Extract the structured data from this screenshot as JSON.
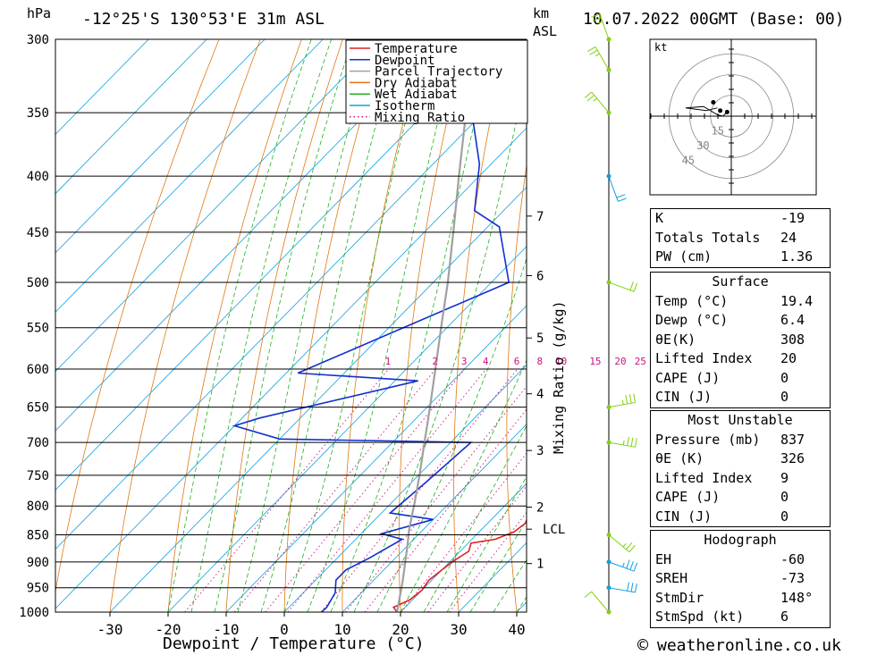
{
  "header": {
    "pressure_unit": "hPa",
    "location": "-12°25'S  130°53'E  31m  ASL",
    "height_unit_line1": "km",
    "height_unit_line2": "ASL",
    "datetime": "10.07.2022  00GMT  (Base: 00)"
  },
  "chart_data": {
    "type": "line",
    "subtype": "skew-T log-P",
    "xlabel": "Dewpoint / Temperature (°C)",
    "ylabel": "hPa",
    "right_axis_label": "km ASL",
    "mixing_ratio_axis_label": "Mixing Ratio (g/kg)",
    "x_ticks": [
      -30,
      -20,
      -10,
      0,
      10,
      20,
      30,
      40
    ],
    "pressure_levels": [
      300,
      350,
      400,
      450,
      500,
      550,
      600,
      650,
      700,
      750,
      800,
      850,
      900,
      950,
      1000
    ],
    "pressure_range": [
      1000,
      300
    ],
    "height_ticks": [
      {
        "label": "7",
        "p": 435
      },
      {
        "label": "6",
        "p": 493
      },
      {
        "label": "5",
        "p": 562
      },
      {
        "label": "4",
        "p": 632
      },
      {
        "label": "3",
        "p": 712
      },
      {
        "label": "2",
        "p": 802
      },
      {
        "label": "1",
        "p": 903
      }
    ],
    "lcl": {
      "label": "LCL",
      "p": 840
    },
    "mixing_ratio_labels": [
      "1",
      "2",
      "3",
      "4",
      "6",
      "8",
      "10",
      "15",
      "20",
      "25"
    ],
    "mixing_ratio_values": [
      1,
      2,
      3,
      4,
      6,
      8,
      10,
      15,
      20,
      25
    ],
    "legend": {
      "position": "top-right",
      "entries": [
        {
          "label": "Temperature",
          "color": "#e02020",
          "style": "solid"
        },
        {
          "label": "Dewpoint",
          "color": "#1030d0",
          "style": "solid"
        },
        {
          "label": "Parcel Trajectory",
          "color": "#a0a0a0",
          "style": "solid"
        },
        {
          "label": "Dry Adiabat",
          "color": "#e07810",
          "style": "solid"
        },
        {
          "label": "Wet Adiabat",
          "color": "#20b020",
          "style": "solid"
        },
        {
          "label": "Isotherm",
          "color": "#10a0e0",
          "style": "solid"
        },
        {
          "label": "Mixing Ratio",
          "color": "#d01080",
          "style": "dotted"
        }
      ]
    },
    "series": [
      {
        "name": "Temperature",
        "color": "#e02020",
        "points": [
          [
            19.4,
            1000
          ],
          [
            18.0,
            990
          ],
          [
            19.5,
            975
          ],
          [
            20.0,
            955
          ],
          [
            19.5,
            935
          ],
          [
            20.0,
            915
          ],
          [
            20.5,
            898
          ],
          [
            21.5,
            880
          ],
          [
            20.5,
            865
          ],
          [
            24.0,
            858
          ],
          [
            26.0,
            845
          ],
          [
            26.5,
            830
          ],
          [
            25.5,
            812
          ],
          [
            24.0,
            795
          ],
          [
            22.5,
            775
          ],
          [
            21.0,
            755
          ],
          [
            20.0,
            738
          ],
          [
            18.5,
            720
          ],
          [
            20.0,
            705
          ],
          [
            21.5,
            702
          ],
          [
            22.5,
            695
          ],
          [
            22.0,
            680
          ],
          [
            20.5,
            660
          ],
          [
            19.0,
            640
          ],
          [
            18.0,
            622
          ],
          [
            19.5,
            605
          ],
          [
            19.0,
            590
          ],
          [
            18.5,
            575
          ],
          [
            17.5,
            550
          ],
          [
            14.5,
            510
          ],
          [
            11.0,
            470
          ],
          [
            9.0,
            450
          ],
          [
            6.0,
            430
          ],
          [
            2.5,
            400
          ],
          [
            -1.0,
            370
          ],
          [
            -2.5,
            360
          ],
          [
            -5.0,
            340
          ],
          [
            -6.5,
            325
          ],
          [
            -8.5,
            306
          ],
          [
            -9.0,
            300
          ]
        ]
      },
      {
        "name": "Dewpoint",
        "color": "#1030d0",
        "points": [
          [
            6.4,
            1000
          ],
          [
            6.5,
            990
          ],
          [
            5.5,
            960
          ],
          [
            3.5,
            935
          ],
          [
            3.5,
            915
          ],
          [
            5.5,
            893
          ],
          [
            8.0,
            858
          ],
          [
            3.5,
            848
          ],
          [
            10.0,
            823
          ],
          [
            1.5,
            812
          ],
          [
            2.5,
            760
          ],
          [
            3.5,
            700
          ],
          [
            -30.0,
            695
          ],
          [
            -40.0,
            676
          ],
          [
            -37.0,
            665
          ],
          [
            -16.0,
            615
          ],
          [
            -38.0,
            605
          ],
          [
            -17.0,
            500
          ],
          [
            -28.0,
            445
          ],
          [
            -35.0,
            430
          ],
          [
            -42.0,
            390
          ],
          [
            -52.0,
            350
          ],
          [
            -60.0,
            300
          ]
        ]
      },
      {
        "name": "Parcel Trajectory",
        "color": "#a0a0a0",
        "points": [
          [
            19.4,
            1000
          ],
          [
            15.0,
            935
          ],
          [
            10.0,
            870
          ],
          [
            7.5,
            840
          ],
          [
            4.0,
            795
          ],
          [
            0.0,
            748
          ],
          [
            -4.5,
            700
          ],
          [
            -9.5,
            650
          ],
          [
            -15.0,
            600
          ],
          [
            -21.0,
            550
          ],
          [
            -27.5,
            500
          ],
          [
            -35.0,
            450
          ],
          [
            -43.5,
            400
          ],
          [
            -53.0,
            350
          ],
          [
            -64.0,
            300
          ]
        ]
      }
    ],
    "hodograph": {
      "unit_label": "kt",
      "ring_labels": [
        "15",
        "30",
        "45"
      ],
      "ring_values_kt": [
        15,
        30,
        45
      ],
      "trace_uv_kt": [
        [
          -3,
          3
        ],
        [
          -6,
          0
        ],
        [
          -10,
          1
        ],
        [
          -20,
          7
        ],
        [
          -33,
          6
        ],
        [
          -18,
          4
        ],
        [
          -10,
          6
        ]
      ],
      "storm_motion_uv_kt": [
        -3,
        3
      ]
    },
    "wind_barbs": [
      {
        "p": 1000,
        "dir": 320,
        "speed": 10
      },
      {
        "p": 950,
        "dir": 100,
        "speed": 30
      },
      {
        "p": 900,
        "dir": 110,
        "speed": 25
      },
      {
        "p": 850,
        "dir": 130,
        "speed": 15
      },
      {
        "p": 700,
        "dir": 100,
        "speed": 25
      },
      {
        "p": 650,
        "dir": 80,
        "speed": 25
      },
      {
        "p": 500,
        "dir": 110,
        "speed": 20
      },
      {
        "p": 400,
        "dir": 160,
        "speed": 20
      },
      {
        "p": 350,
        "dir": 320,
        "speed": 15
      },
      {
        "p": 320,
        "dir": 330,
        "speed": 15
      },
      {
        "p": 300,
        "dir": 340,
        "speed": 15
      }
    ]
  },
  "indices": {
    "general": [
      {
        "key": "K",
        "value": "-19"
      },
      {
        "key": "Totals Totals",
        "value": "24"
      },
      {
        "key": "PW (cm)",
        "value": "1.36"
      }
    ],
    "surface_title": "Surface",
    "surface": [
      {
        "key": "Temp (°C)",
        "value": "19.4"
      },
      {
        "key": "Dewp (°C)",
        "value": "6.4"
      },
      {
        "key": "θE(K)",
        "value": "308"
      },
      {
        "key": "Lifted Index",
        "value": "20"
      },
      {
        "key": "CAPE (J)",
        "value": "0"
      },
      {
        "key": "CIN (J)",
        "value": "0"
      }
    ],
    "most_unstable_title": "Most Unstable",
    "most_unstable": [
      {
        "key": "Pressure (mb)",
        "value": "837"
      },
      {
        "key": "θE (K)",
        "value": "326"
      },
      {
        "key": "Lifted Index",
        "value": "9"
      },
      {
        "key": "CAPE (J)",
        "value": "0"
      },
      {
        "key": "CIN (J)",
        "value": "0"
      }
    ],
    "hodograph_title": "Hodograph",
    "hodograph": [
      {
        "key": "EH",
        "value": "-60"
      },
      {
        "key": "SREH",
        "value": "-73"
      },
      {
        "key": "StmDir",
        "value": "148°"
      },
      {
        "key": "StmSpd (kt)",
        "value": "6"
      }
    ]
  },
  "footer": {
    "copyright_symbol": "©",
    "brand": "weatheronline.co.uk"
  }
}
